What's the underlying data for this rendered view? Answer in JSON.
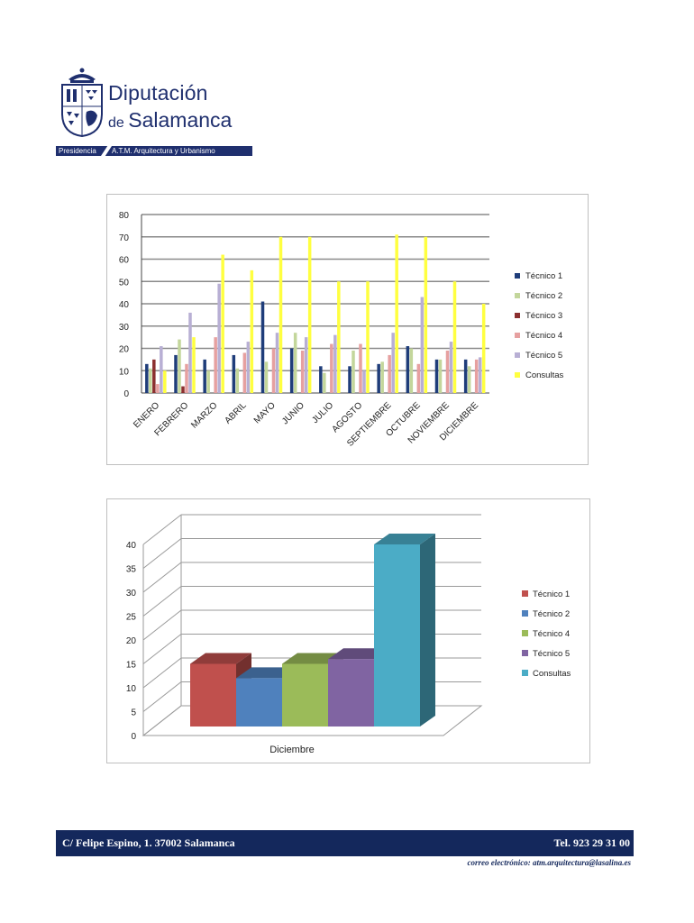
{
  "header": {
    "org_line1": "Diputación",
    "org_line2_prefix": "de",
    "org_line2_name": "Salamanca",
    "subbar_left": "Presidencia",
    "subbar_right": "A.T.M. Arquitectura y Urbanismo"
  },
  "colors": {
    "brand_navy": "#1f2f6e",
    "footer_navy": "#14285c"
  },
  "chart_data": [
    {
      "type": "bar",
      "title": "",
      "xlabel": "",
      "ylabel": "",
      "ylim": [
        0,
        80
      ],
      "yticks": [
        0,
        10,
        20,
        30,
        40,
        50,
        60,
        70,
        80
      ],
      "grid": true,
      "legend": "right",
      "categories": [
        "ENERO",
        "FEBRERO",
        "MARZO",
        "ABRIL",
        "MAYO",
        "JUNIO",
        "JULIO",
        "AGOSTO",
        "SEPTIEMBRE",
        "OCTUBRE",
        "NOVIEMBRE",
        "DICIEMBRE"
      ],
      "series": [
        {
          "name": "Técnico 1",
          "color": "#1f3d7a",
          "values": [
            13,
            17,
            15,
            17,
            41,
            20,
            12,
            12,
            13,
            21,
            15,
            15
          ]
        },
        {
          "name": "Técnico 2",
          "color": "#c3d69b",
          "values": [
            11,
            24,
            10,
            11,
            14,
            27,
            9,
            19,
            14,
            20,
            15,
            12
          ]
        },
        {
          "name": "Técnico 3",
          "color": "#8b2f2f",
          "values": [
            15,
            3,
            0,
            0,
            0,
            0,
            0,
            0,
            0,
            0,
            0,
            0
          ]
        },
        {
          "name": "Técnico 4",
          "color": "#e6a0a0",
          "values": [
            4,
            13,
            25,
            18,
            20,
            19,
            22,
            22,
            17,
            13,
            19,
            15
          ]
        },
        {
          "name": "Técnico 5",
          "color": "#b8afd4",
          "values": [
            21,
            36,
            49,
            23,
            27,
            25,
            26,
            10,
            27,
            43,
            23,
            16
          ]
        },
        {
          "name": "Consultas",
          "color": "#ffff40",
          "values": [
            10,
            25,
            62,
            55,
            70,
            70,
            50,
            50,
            71,
            70,
            50,
            40
          ]
        }
      ]
    },
    {
      "type": "bar",
      "style": "3d",
      "title": "",
      "xlabel": "Diciembre",
      "ylabel": "",
      "ylim": [
        0,
        40
      ],
      "yticks": [
        0,
        5,
        10,
        15,
        20,
        25,
        30,
        35,
        40
      ],
      "grid": true,
      "legend": "right",
      "categories": [
        "Diciembre"
      ],
      "series": [
        {
          "name": "Técnico 1",
          "color": "#c0504d",
          "values": [
            15
          ]
        },
        {
          "name": "Técnico 2",
          "color": "#4f81bd",
          "values": [
            12
          ]
        },
        {
          "name": "Técnico 4",
          "color": "#9bbb59",
          "values": [
            15
          ]
        },
        {
          "name": "Técnico 5",
          "color": "#8064a2",
          "values": [
            16
          ]
        },
        {
          "name": "Consultas",
          "color": "#4bacc6",
          "values": [
            40
          ]
        }
      ]
    }
  ],
  "footer": {
    "address": "C/ Felipe Espino, 1. 37002 Salamanca",
    "phone": "Tel. 923 29 31 00",
    "email": "correo electrónico: atm.arquitectura@lasalina.es"
  }
}
